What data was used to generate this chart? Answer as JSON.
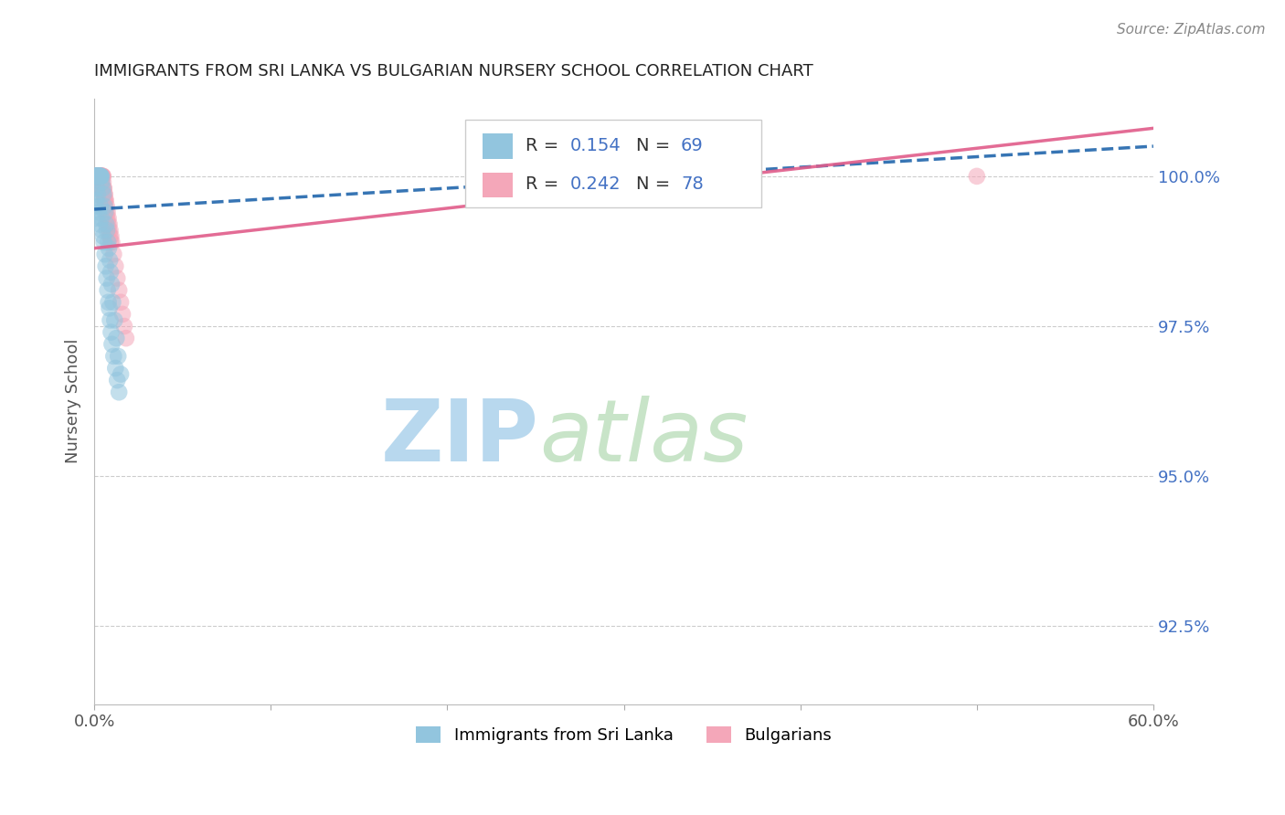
{
  "title": "IMMIGRANTS FROM SRI LANKA VS BULGARIAN NURSERY SCHOOL CORRELATION CHART",
  "source_text": "Source: ZipAtlas.com",
  "ylabel": "Nursery School",
  "yticks": [
    92.5,
    95.0,
    97.5,
    100.0
  ],
  "ytick_labels": [
    "92.5%",
    "95.0%",
    "97.5%",
    "100.0%"
  ],
  "xmin": 0.0,
  "xmax": 60.0,
  "ymin": 91.2,
  "ymax": 101.3,
  "legend_r1": "R = 0.154",
  "legend_n1": "N = 69",
  "legend_r2": "R = 0.242",
  "legend_n2": "N = 78",
  "color_blue": "#92c5de",
  "color_pink": "#f4a7b9",
  "color_blue_line": "#2166ac",
  "color_pink_line": "#e05c8a",
  "watermark_zip": "ZIP",
  "watermark_atlas": "atlas",
  "watermark_color_zip": "#b8d8ee",
  "watermark_color_atlas": "#c8e4c8",
  "sri_lanka_x": [
    0.05,
    0.08,
    0.1,
    0.12,
    0.15,
    0.18,
    0.2,
    0.22,
    0.25,
    0.28,
    0.3,
    0.32,
    0.35,
    0.38,
    0.4,
    0.05,
    0.08,
    0.1,
    0.15,
    0.2,
    0.25,
    0.3,
    0.35,
    0.4,
    0.45,
    0.5,
    0.55,
    0.6,
    0.65,
    0.7,
    0.75,
    0.8,
    0.85,
    0.9,
    0.95,
    1.0,
    1.1,
    1.2,
    1.3,
    1.4,
    0.05,
    0.06,
    0.09,
    0.11,
    0.13,
    0.16,
    0.19,
    0.23,
    0.26,
    0.29,
    0.33,
    0.36,
    0.42,
    0.48,
    0.52,
    0.58,
    0.62,
    0.68,
    0.72,
    0.78,
    0.82,
    0.88,
    0.92,
    0.98,
    1.05,
    1.15,
    1.25,
    1.35,
    1.5
  ],
  "sri_lanka_y": [
    100.0,
    100.0,
    100.0,
    100.0,
    100.0,
    100.0,
    100.0,
    100.0,
    100.0,
    100.0,
    100.0,
    100.0,
    100.0,
    100.0,
    100.0,
    99.5,
    99.3,
    99.6,
    99.8,
    99.7,
    99.4,
    99.2,
    99.5,
    99.3,
    99.1,
    99.0,
    98.9,
    98.7,
    98.5,
    98.3,
    98.1,
    97.9,
    97.8,
    97.6,
    97.4,
    97.2,
    97.0,
    96.8,
    96.6,
    96.4,
    100.0,
    100.0,
    100.0,
    100.0,
    100.0,
    100.0,
    100.0,
    100.0,
    100.0,
    100.0,
    100.0,
    100.0,
    99.9,
    99.8,
    99.7,
    99.5,
    99.4,
    99.2,
    99.1,
    98.9,
    98.8,
    98.6,
    98.4,
    98.2,
    97.9,
    97.6,
    97.3,
    97.0,
    96.7
  ],
  "bulgarian_x": [
    0.05,
    0.08,
    0.1,
    0.12,
    0.15,
    0.18,
    0.2,
    0.22,
    0.25,
    0.28,
    0.3,
    0.32,
    0.35,
    0.38,
    0.4,
    0.42,
    0.45,
    0.48,
    0.5,
    0.55,
    0.6,
    0.65,
    0.7,
    0.75,
    0.8,
    0.85,
    0.9,
    0.95,
    1.0,
    1.1,
    0.06,
    0.09,
    0.11,
    0.13,
    0.16,
    0.19,
    0.23,
    0.26,
    0.29,
    0.33,
    0.36,
    0.42,
    0.48,
    0.52,
    0.58,
    0.62,
    0.68,
    0.72,
    0.78,
    0.82,
    0.88,
    0.92,
    0.07,
    0.14,
    0.17,
    0.21,
    0.24,
    0.27,
    0.31,
    0.34,
    0.37,
    0.41,
    0.44,
    0.47,
    0.51,
    0.54,
    0.57,
    0.61,
    1.2,
    1.3,
    1.4,
    1.5,
    1.6,
    1.7,
    1.8,
    0.43,
    0.56,
    50.0
  ],
  "bulgarian_y": [
    100.0,
    100.0,
    100.0,
    100.0,
    100.0,
    100.0,
    100.0,
    100.0,
    100.0,
    100.0,
    100.0,
    100.0,
    100.0,
    100.0,
    100.0,
    100.0,
    100.0,
    100.0,
    100.0,
    99.8,
    99.7,
    99.6,
    99.5,
    99.4,
    99.3,
    99.2,
    99.1,
    99.0,
    98.9,
    98.7,
    100.0,
    100.0,
    100.0,
    100.0,
    100.0,
    100.0,
    100.0,
    100.0,
    100.0,
    100.0,
    100.0,
    99.9,
    99.8,
    99.7,
    99.6,
    99.5,
    99.4,
    99.3,
    99.2,
    99.1,
    99.0,
    98.9,
    100.0,
    100.0,
    100.0,
    100.0,
    100.0,
    100.0,
    100.0,
    100.0,
    100.0,
    100.0,
    100.0,
    100.0,
    99.9,
    99.8,
    99.7,
    99.6,
    98.5,
    98.3,
    98.1,
    97.9,
    97.7,
    97.5,
    97.3,
    99.8,
    99.6,
    100.0
  ],
  "sl_trend_x0": 0.0,
  "sl_trend_y0": 99.45,
  "sl_trend_x1": 60.0,
  "sl_trend_y1": 100.5,
  "bg_trend_x0": 0.0,
  "bg_trend_y0": 98.8,
  "bg_trend_x1": 60.0,
  "bg_trend_y1": 100.8
}
